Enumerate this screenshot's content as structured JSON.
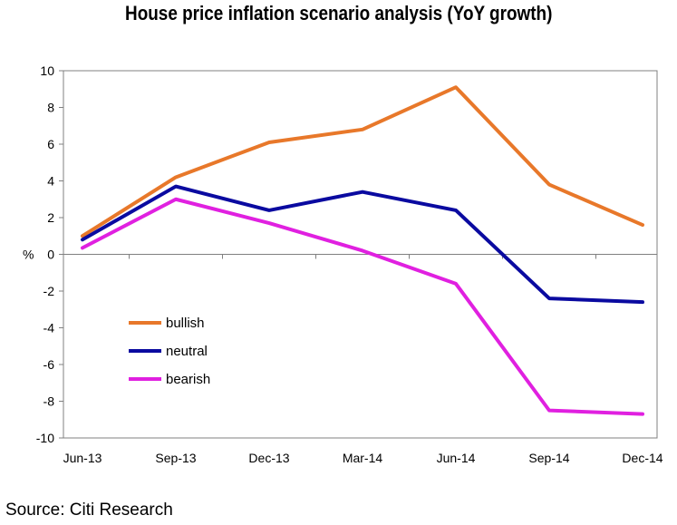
{
  "chart_data": {
    "type": "line",
    "title": "House price inflation scenario analysis (YoY growth)",
    "ylabel": "%",
    "xlabel": "",
    "ylim": [
      -10,
      10
    ],
    "yticks": [
      10,
      8,
      6,
      4,
      2,
      0,
      -2,
      -4,
      -6,
      -8,
      -10
    ],
    "yticklabels": [
      "10",
      "8",
      "6",
      "4",
      "2",
      "0",
      "-2",
      "-4",
      "-6",
      "-8",
      "-10"
    ],
    "categories": [
      "Jun-13",
      "Sep-13",
      "Dec-13",
      "Mar-14",
      "Jun-14",
      "Sep-14",
      "Dec-14"
    ],
    "series": [
      {
        "name": "bullish",
        "color": "#E8782A",
        "values": [
          1.0,
          4.2,
          6.1,
          6.8,
          9.1,
          3.8,
          1.6
        ]
      },
      {
        "name": "neutral",
        "color": "#0A0AA0",
        "values": [
          0.8,
          3.7,
          2.4,
          3.4,
          2.4,
          -2.4,
          -2.6
        ]
      },
      {
        "name": "bearish",
        "color": "#E020E0",
        "values": [
          0.35,
          3.0,
          1.7,
          0.2,
          -1.6,
          -8.5,
          -8.7
        ]
      }
    ],
    "grid": false,
    "legend_position": "lower-left"
  },
  "source": "Source: Citi Research"
}
